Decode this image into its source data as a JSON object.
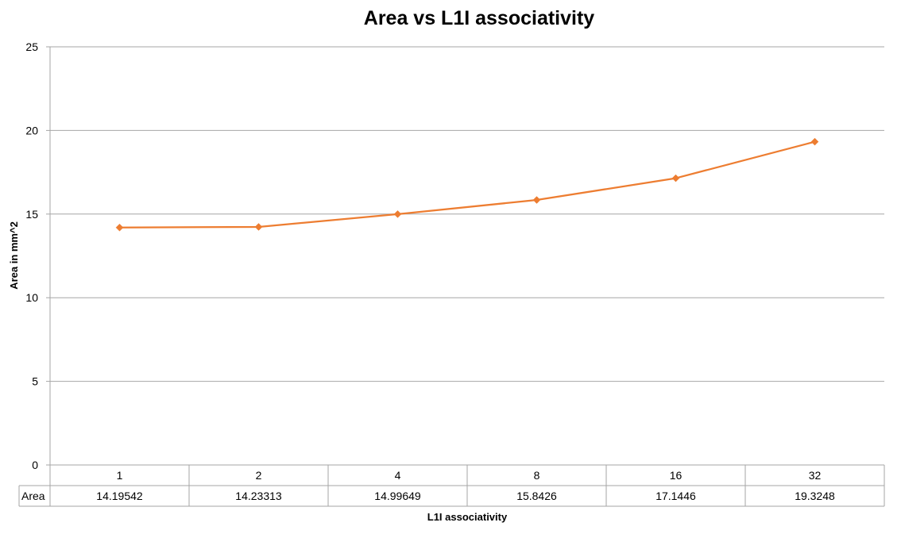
{
  "chart_data": {
    "type": "line",
    "title": "Area vs L1I associativity",
    "xlabel": "L1I associativity",
    "ylabel": "Area in mm^2",
    "categories": [
      "1",
      "2",
      "4",
      "8",
      "16",
      "32"
    ],
    "series": [
      {
        "name": "Area",
        "values": [
          14.19542,
          14.23313,
          14.99649,
          15.8426,
          17.1446,
          19.3248
        ],
        "value_labels": [
          "14.19542",
          "14.23313",
          "14.99649",
          "15.8426",
          "17.1446",
          "19.3248"
        ]
      }
    ],
    "ylim": [
      0,
      25
    ],
    "yticks": [
      "0",
      "5",
      "10",
      "15",
      "20",
      "25"
    ],
    "grid": true,
    "legend": "data-table-below",
    "colors": {
      "line": "#ed7d31",
      "grid": "#a6a6a6"
    }
  }
}
